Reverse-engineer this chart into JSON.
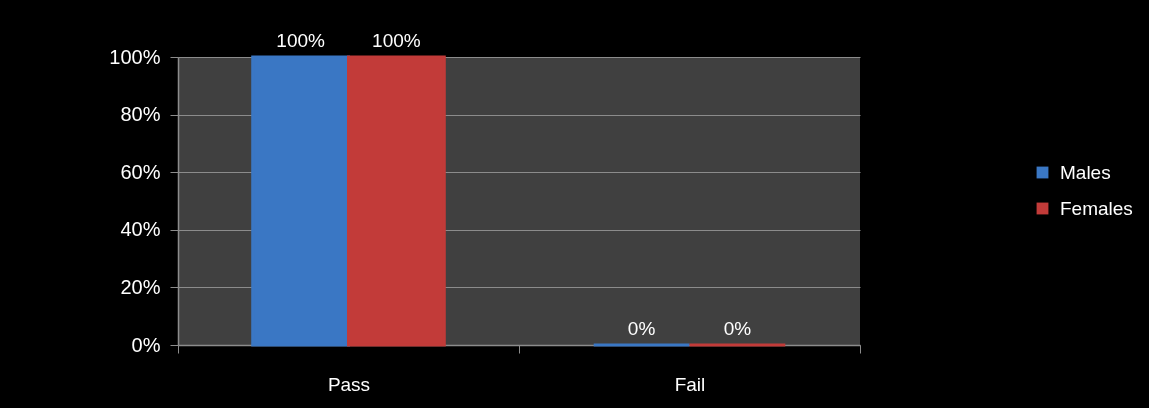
{
  "chart_data": {
    "type": "bar",
    "categories": [
      "Pass",
      "Fail"
    ],
    "series": [
      {
        "name": "Males",
        "color": "#3a77c4",
        "values": [
          100,
          0
        ],
        "value_labels": [
          "100%",
          "0%"
        ]
      },
      {
        "name": "Females",
        "color": "#c23b39",
        "values": [
          100,
          0
        ],
        "value_labels": [
          "100%",
          "0%"
        ]
      }
    ],
    "ylim": [
      0,
      100
    ],
    "yticks": [
      {
        "value": 0,
        "label": "0%"
      },
      {
        "value": 20,
        "label": "20%"
      },
      {
        "value": 40,
        "label": "40%"
      },
      {
        "value": 60,
        "label": "60%"
      },
      {
        "value": 80,
        "label": "80%"
      },
      {
        "value": 100,
        "label": "100%"
      }
    ],
    "grid": "y",
    "legend": "right"
  }
}
